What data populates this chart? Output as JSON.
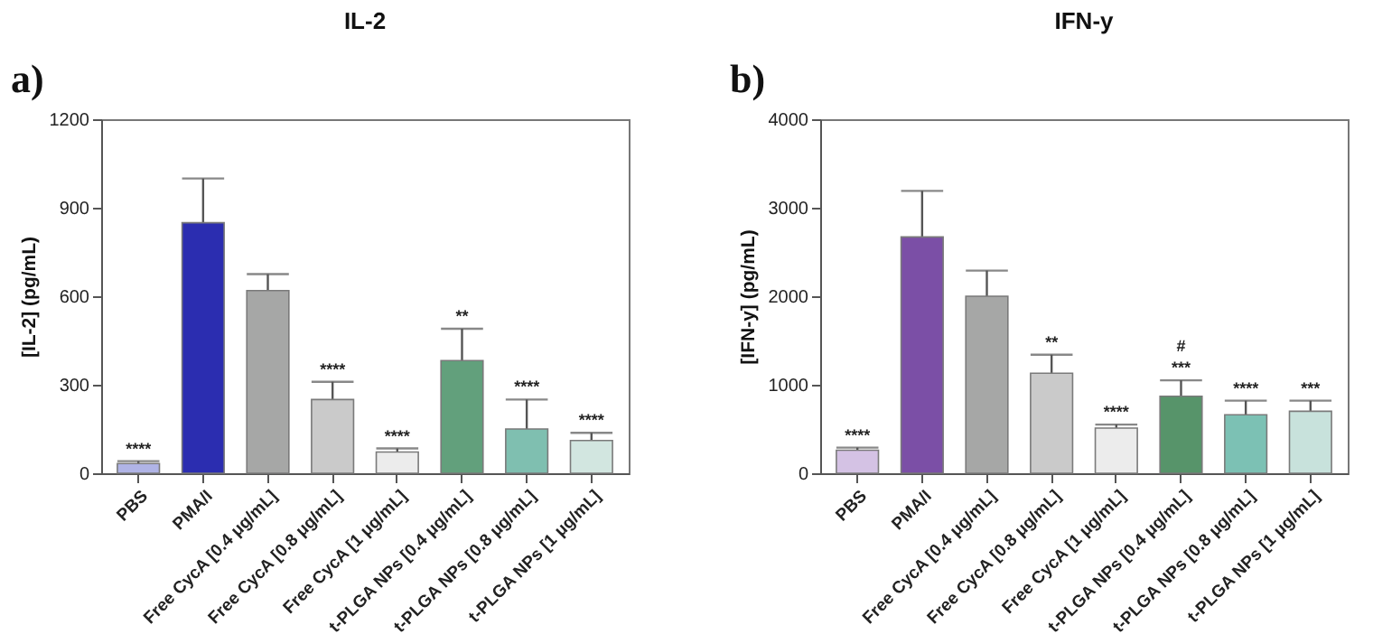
{
  "chart_data": [
    {
      "type": "bar",
      "title": "IL-2",
      "ylabel": "[IL-2] (pg/mL)",
      "categories": [
        "PBS",
        "PMA/I",
        "Free CycA [0.4 μg/mL]",
        "Free CycA [0.8 μg/mL]",
        "Free CycA [1 μg/mL]",
        "t-PLGA NPs [0.4 μg/mL]",
        "t-PLGA NPs [0.8 μg/mL]",
        "t-PLGA NPs [1 μg/mL]"
      ],
      "values": [
        33,
        849,
        619,
        250,
        72,
        382,
        150,
        111
      ],
      "errors": [
        8,
        150,
        56,
        60,
        12,
        108,
        100,
        26
      ],
      "colors": [
        "#b0b4e6",
        "#2b2db0",
        "#a6a7a6",
        "#cacaca",
        "#ececec",
        "#62a07c",
        "#7fbfb0",
        "#d2e6e0"
      ],
      "ylim": [
        0,
        1200
      ],
      "yticks": [
        0,
        300,
        600,
        900,
        1200
      ],
      "grid": false,
      "annotations": [
        "a)",
        {
          "text": "****",
          "x": "PBS",
          "y": 41
        },
        {
          "text": "****",
          "x": "Free CycA [0.8 μg/mL]",
          "y": 310
        },
        {
          "text": "****",
          "x": "Free CycA [1 μg/mL]",
          "y": 84
        },
        {
          "text": "**",
          "x": "t-PLGA NPs [0.4 μg/mL]",
          "y": 490
        },
        {
          "text": "****",
          "x": "t-PLGA NPs [0.8 μg/mL]",
          "y": 250
        },
        {
          "text": "****",
          "x": "t-PLGA NPs [1 μg/mL]",
          "y": 137
        }
      ]
    },
    {
      "type": "bar",
      "title": "IFN-y",
      "ylabel": "[IFN-y] (pg/mL)",
      "categories": [
        "PBS",
        "PMA/I",
        "Free CycA [0.4 μg/mL]",
        "Free CycA [0.8 μg/mL]",
        "Free CycA [1 μg/mL]",
        "t-PLGA NPs [0.4 μg/mL]",
        "t-PLGA NPs [0.8 μg/mL]",
        "t-PLGA NPs [1 μg/mL]"
      ],
      "values": [
        260,
        2670,
        2000,
        1130,
        510,
        870,
        660,
        700
      ],
      "errors": [
        30,
        520,
        290,
        210,
        40,
        180,
        160,
        120
      ],
      "colors": [
        "#d4c2e4",
        "#7b4fa6",
        "#a6a7a6",
        "#cacaca",
        "#ececec",
        "#57946a",
        "#7cc1b4",
        "#c8e2dc"
      ],
      "ylim": [
        0,
        4000
      ],
      "yticks": [
        0,
        1000,
        2000,
        3000,
        4000
      ],
      "grid": false,
      "annotations": [
        "b)",
        {
          "text": "****",
          "x": "PBS",
          "y": 290
        },
        {
          "text": "**",
          "x": "Free CycA [0.8 μg/mL]",
          "y": 1340
        },
        {
          "text": "****",
          "x": "Free CycA [1 μg/mL]",
          "y": 550
        },
        {
          "text": "***",
          "x": "t-PLGA NPs [0.4 μg/mL]",
          "y": 1050
        },
        {
          "text": "#",
          "x": "t-PLGA NPs [0.4 μg/mL]",
          "y": 1050
        },
        {
          "text": "****",
          "x": "t-PLGA NPs [0.8 μg/mL]",
          "y": 820
        },
        {
          "text": "***",
          "x": "t-PLGA NPs [1 μg/mL]",
          "y": 820
        }
      ]
    }
  ]
}
